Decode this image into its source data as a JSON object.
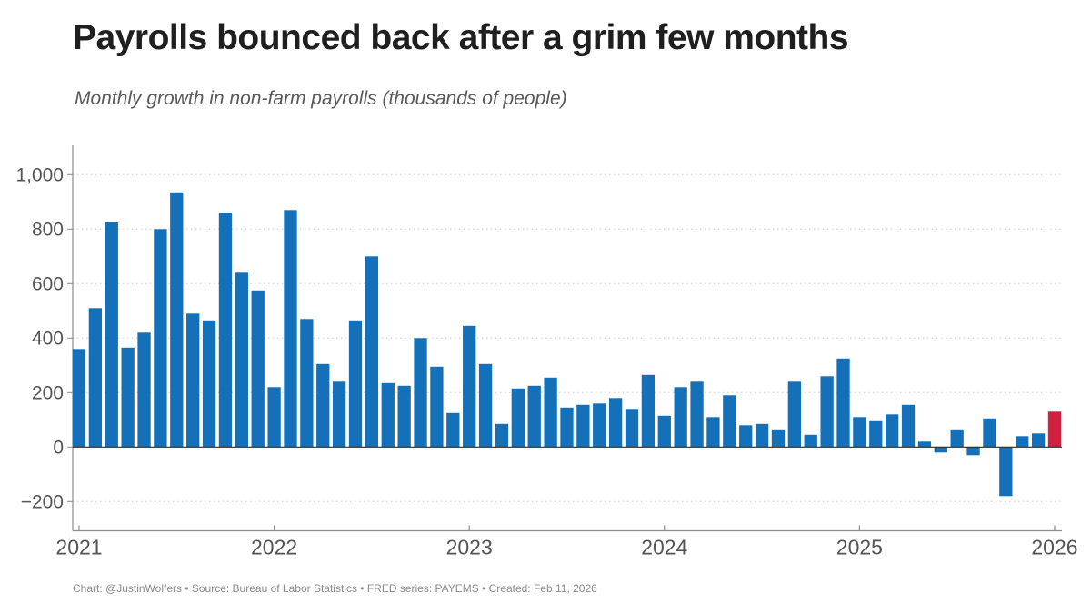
{
  "title": "Payrolls bounced back after a grim few months",
  "subtitle": "Monthly growth in non-farm payrolls (thousands of people)",
  "footer": "Chart: @JustinWolfers • Source: Bureau of Labor Statistics • FRED series: PAYEMS • Created: Feb 11, 2026",
  "colors": {
    "bar": "#1471b9",
    "highlight_bar": "#d01f3f",
    "grid": "#d9d9d9",
    "axis_line": "#8c8c8c",
    "zero_line": "#2b2b2b",
    "tick_text": "#555555"
  },
  "chart_data": {
    "type": "bar",
    "title": "Payrolls bounced back after a grim few months",
    "subtitle": "Monthly growth in non-farm payrolls (thousands of people)",
    "ylabel": "thousands of people",
    "xlabel": "",
    "x_frequency": "monthly",
    "x_monthly_from": "2021-01",
    "x_monthly_to": "2026-01",
    "x_tick_labels": [
      "2021",
      "2022",
      "2023",
      "2024",
      "2025",
      "2026"
    ],
    "y_ticks": [
      {
        "value": 1000,
        "label": "1,000"
      },
      {
        "value": 800,
        "label": "800"
      },
      {
        "value": 600,
        "label": "600"
      },
      {
        "value": 400,
        "label": "400"
      },
      {
        "value": 200,
        "label": "200"
      },
      {
        "value": 0,
        "label": "0"
      },
      {
        "value": -200,
        "label": "−200"
      }
    ],
    "ylim": [
      -290,
      1105
    ],
    "grid": "dotted-horizontal",
    "legend": "none",
    "highlight_last_bar": true,
    "series": [
      {
        "name": "Monthly growth in non-farm payrolls (thousands)",
        "values": [
          360,
          510,
          825,
          365,
          420,
          800,
          935,
          490,
          465,
          860,
          640,
          575,
          220,
          870,
          470,
          305,
          240,
          465,
          700,
          235,
          225,
          400,
          295,
          125,
          445,
          305,
          85,
          215,
          225,
          255,
          145,
          155,
          160,
          180,
          140,
          265,
          115,
          220,
          240,
          110,
          190,
          80,
          85,
          65,
          240,
          45,
          260,
          325,
          110,
          95,
          120,
          155,
          20,
          -20,
          65,
          -30,
          105,
          -180,
          40,
          50,
          130
        ]
      }
    ]
  }
}
